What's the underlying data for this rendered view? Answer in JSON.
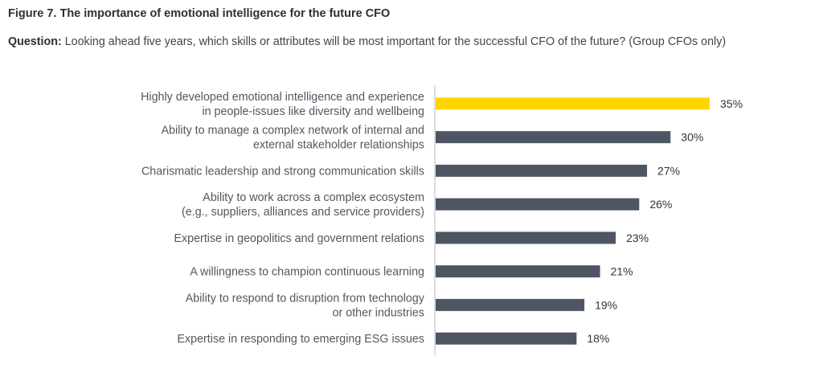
{
  "figure": {
    "title": "Figure 7. The importance of emotional intelligence for the future CFO",
    "question_label": "Question:",
    "question_text": " Looking ahead five years, which skills or attributes will be most important for the successful CFO of the future? (Group CFOs only)"
  },
  "colors": {
    "highlight": "#ffd500",
    "bar": "#4e5663",
    "axis": "#b9bcc4"
  },
  "chart_data": {
    "type": "bar",
    "orientation": "horizontal",
    "categories": [
      [
        "Highly developed emotional intelligence and experience",
        "in people-issues like diversity and wellbeing"
      ],
      [
        "Ability to manage a complex network of internal and",
        "external stakeholder relationships"
      ],
      [
        "Charismatic leadership and strong communication skills"
      ],
      [
        "Ability to work across a complex ecosystem",
        "(e.g., suppliers, alliances and service providers)"
      ],
      [
        "Expertise in geopolitics and government relations"
      ],
      [
        "A willingness to champion continuous learning"
      ],
      [
        "Ability to respond to disruption from technology",
        "or other industries"
      ],
      [
        "Expertise in responding to emerging ESG issues"
      ]
    ],
    "values": [
      35,
      30,
      27,
      26,
      23,
      21,
      19,
      18
    ],
    "value_labels": [
      "35%",
      "30%",
      "27%",
      "26%",
      "23%",
      "21%",
      "19%",
      "18%"
    ],
    "highlighted_index": 0,
    "grid": false,
    "legend": "none"
  }
}
